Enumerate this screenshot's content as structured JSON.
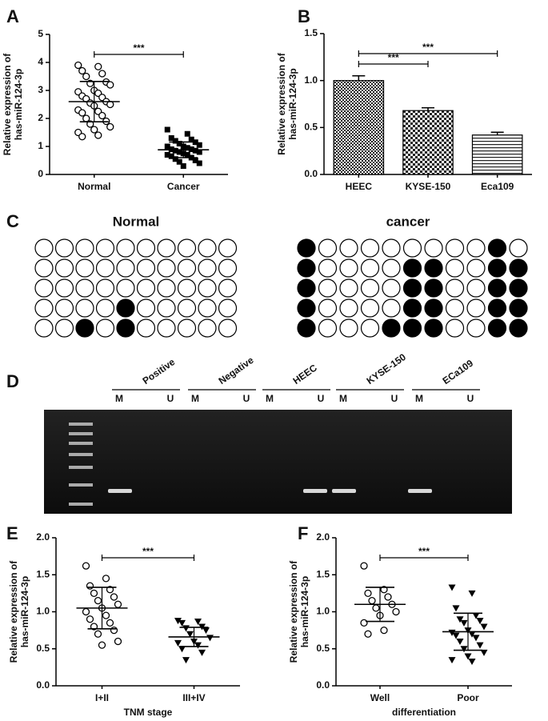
{
  "chart_data": [
    {
      "panel": "A",
      "type": "dotplot",
      "ylabel": [
        "Relative expression of",
        "has-miR-124-3p"
      ],
      "ylim": [
        0,
        5
      ],
      "yticks": [
        0,
        1,
        2,
        3,
        4,
        5
      ],
      "series": [
        {
          "name": "Normal",
          "marker": "circle-open",
          "color": "#000000",
          "mean": 2.6,
          "sd": 0.72,
          "values": [
            3.9,
            3.85,
            3.7,
            3.6,
            3.5,
            3.3,
            3.25,
            3.2,
            3.0,
            2.95,
            2.9,
            2.8,
            2.75,
            2.7,
            2.6,
            2.55,
            2.5,
            2.45,
            2.3,
            2.25,
            2.2,
            2.1,
            2.0,
            1.9,
            1.8,
            1.7,
            1.6,
            1.5,
            1.4,
            1.35
          ]
        },
        {
          "name": "Cancer",
          "marker": "square-filled",
          "color": "#000000",
          "mean": 0.88,
          "sd": 0.28,
          "values": [
            1.6,
            1.45,
            1.3,
            1.25,
            1.2,
            1.15,
            1.1,
            1.05,
            1.0,
            1.0,
            0.95,
            0.9,
            0.9,
            0.85,
            0.85,
            0.8,
            0.8,
            0.75,
            0.7,
            0.7,
            0.65,
            0.6,
            0.55,
            0.5,
            0.45,
            0.4,
            0.3
          ]
        }
      ],
      "annotations": [
        {
          "text": "***",
          "between": [
            "Normal",
            "Cancer"
          ]
        }
      ]
    },
    {
      "panel": "B",
      "type": "bar",
      "ylabel": [
        "Relative expression of",
        "has-miR-124-3p"
      ],
      "ylim": [
        0,
        1.5
      ],
      "yticks": [
        {
          "value": 0,
          "label": "0.0"
        },
        0.5,
        {
          "value": 1,
          "label": "1.0"
        },
        1.5
      ],
      "categories": [
        "HEEC",
        "KYSE-150",
        "Eca109"
      ],
      "values": [
        1.0,
        0.68,
        0.42
      ],
      "errors": [
        0.05,
        0.03,
        0.03
      ],
      "patterns": [
        "checker-fine",
        "checker",
        "hstripes"
      ],
      "annotations": [
        {
          "text": "***",
          "between": [
            "HEEC",
            "Eca109"
          ]
        },
        {
          "text": "***",
          "between": [
            "HEEC",
            "KYSE-150"
          ]
        }
      ]
    },
    {
      "panel": "E",
      "type": "dotplot",
      "ylabel": [
        "Relative expression of",
        "has-miR-124-3p"
      ],
      "xlabel": "TNM stage",
      "ylim": [
        0,
        2
      ],
      "yticks": [
        {
          "value": 0,
          "label": "0.0"
        },
        0.5,
        {
          "value": 1,
          "label": "1.0"
        },
        1.5,
        {
          "value": 2,
          "label": "2.0"
        }
      ],
      "series": [
        {
          "name": "I+II",
          "marker": "circle-open",
          "color": "#000000",
          "mean": 1.05,
          "sd": 0.28,
          "values": [
            1.62,
            1.45,
            1.35,
            1.3,
            1.25,
            1.2,
            1.15,
            1.1,
            1.05,
            1.0,
            0.95,
            0.9,
            0.85,
            0.8,
            0.75,
            0.7,
            0.6,
            0.55
          ]
        },
        {
          "name": "III+IV",
          "marker": "triangle-filled",
          "color": "#000000",
          "mean": 0.66,
          "sd": 0.13,
          "values": [
            0.88,
            0.87,
            0.85,
            0.8,
            0.78,
            0.75,
            0.7,
            0.65,
            0.6,
            0.58,
            0.55,
            0.5,
            0.45,
            0.35
          ]
        }
      ],
      "annotations": [
        {
          "text": "***",
          "between": [
            "I+II",
            "III+IV"
          ]
        }
      ]
    },
    {
      "panel": "F",
      "type": "dotplot",
      "ylabel": [
        "Relative expression of",
        "has-miR-124-3p"
      ],
      "xlabel": "differentiation",
      "ylim": [
        0,
        2
      ],
      "yticks": [
        {
          "value": 0,
          "label": "0.0"
        },
        0.5,
        {
          "value": 1,
          "label": "1.0"
        },
        1.5,
        {
          "value": 2,
          "label": "2.0"
        }
      ],
      "series": [
        {
          "name": "Well",
          "marker": "circle-open",
          "color": "#000000",
          "mean": 1.1,
          "sd": 0.23,
          "values": [
            1.62,
            1.3,
            1.25,
            1.2,
            1.15,
            1.1,
            1.05,
            1.0,
            0.95,
            0.85,
            0.75,
            0.7
          ]
        },
        {
          "name": "Poor",
          "marker": "triangle-filled",
          "color": "#000000",
          "mean": 0.73,
          "sd": 0.25,
          "values": [
            1.33,
            1.25,
            1.05,
            0.95,
            0.9,
            0.88,
            0.85,
            0.8,
            0.75,
            0.72,
            0.7,
            0.68,
            0.65,
            0.6,
            0.55,
            0.5,
            0.45,
            0.4,
            0.35,
            0.33
          ]
        }
      ],
      "annotations": [
        {
          "text": "***",
          "between": [
            "Well",
            "Poor"
          ]
        }
      ]
    }
  ],
  "methylation": {
    "panel": "C",
    "groups": [
      {
        "title": "Normal",
        "rows": [
          [
            0,
            0,
            0,
            0,
            0,
            0,
            0,
            0,
            0,
            0
          ],
          [
            0,
            0,
            0,
            0,
            0,
            0,
            0,
            0,
            0,
            0
          ],
          [
            0,
            0,
            0,
            0,
            0,
            0,
            0,
            0,
            0,
            0
          ],
          [
            0,
            0,
            0,
            0,
            1,
            0,
            0,
            0,
            0,
            0
          ],
          [
            0,
            0,
            1,
            0,
            1,
            0,
            0,
            0,
            0,
            0
          ]
        ]
      },
      {
        "title": "cancer",
        "rows": [
          [
            1,
            0,
            0,
            0,
            0,
            0,
            0,
            0,
            0,
            1,
            0
          ],
          [
            1,
            0,
            0,
            0,
            0,
            1,
            1,
            0,
            0,
            1,
            1
          ],
          [
            1,
            0,
            0,
            0,
            0,
            1,
            1,
            0,
            0,
            1,
            1
          ],
          [
            1,
            0,
            0,
            0,
            0,
            1,
            1,
            0,
            0,
            1,
            1
          ],
          [
            1,
            0,
            0,
            0,
            1,
            1,
            1,
            0,
            0,
            1,
            1
          ]
        ]
      }
    ]
  },
  "gel": {
    "panel": "D",
    "well_labels": [
      "M",
      "U"
    ],
    "lanes": [
      {
        "name": "Positive",
        "M": 1,
        "U": 0
      },
      {
        "name": "Negative",
        "M": 0,
        "U": 0
      },
      {
        "name": "HEEC",
        "M": 0,
        "U": 1
      },
      {
        "name": "KYSE-150",
        "M": 1,
        "U": 0
      },
      {
        "name": "ECa109",
        "M": 1,
        "U": 0
      }
    ]
  }
}
